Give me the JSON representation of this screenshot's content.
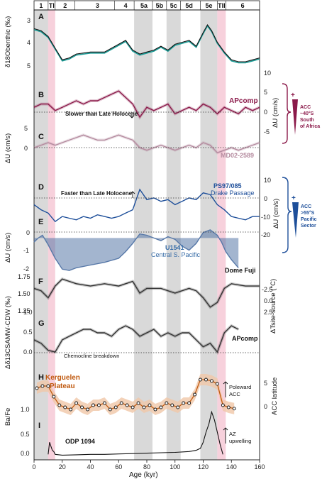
{
  "colors": {
    "teal": "#1a9c96",
    "black": "#111111",
    "maroon": "#8b1a4a",
    "maroon_light": "#c08a9f",
    "mauve": "#b48a9e",
    "blue": "#1e4f9a",
    "blue_fill": "#5778a8",
    "gray_dark": "#333333",
    "gray_fill": "#8a8a8a",
    "orange": "#c05a10",
    "orange_fill": "#f0c7a8",
    "gray_band": "#d9d9d9",
    "pink_band": "#f6c9d6"
  },
  "stages": [
    "1",
    "TI",
    "2",
    "3",
    "4",
    "5a",
    "5b",
    "5c",
    "5d",
    "5e",
    "TII",
    "6"
  ],
  "xaxis": {
    "label": "Age (kyr)",
    "ticks": [
      "0",
      "20",
      "40",
      "60",
      "80",
      "100",
      "120",
      "140",
      "160"
    ]
  },
  "panels": {
    "A": {
      "letter": "A",
      "ylabel": "δ18Obenthic (‰)",
      "ticks": [
        "3",
        "4",
        "5"
      ]
    },
    "B": {
      "letter": "B",
      "name": "APcomp",
      "ylabel": "ΔU (cm/s)",
      "ticks": [
        "10",
        "5",
        "0",
        "-5"
      ],
      "annotation": "Slower than Late Holocene"
    },
    "C": {
      "letter": "C",
      "name": "MD02-2589",
      "ylabel": "ΔU (cm/s)",
      "ticks": [
        "5",
        "0"
      ]
    },
    "D": {
      "letter": "D",
      "name": "PS97/085",
      "name2": "Drake Passage",
      "ylabel": "ΔU (cm/s)",
      "ticks": [
        "10",
        "0",
        "-10",
        "-20"
      ],
      "annotation": "Faster than Late Holocene"
    },
    "E": {
      "letter": "E",
      "name": "U1541",
      "name2": "Central S. Pacific",
      "ylabel": "ΔU (cm/s)",
      "ticks": [
        "0",
        "-1",
        "-2"
      ]
    },
    "F": {
      "letter": "F",
      "name": "Dome Fuji",
      "ylabel": "ΔTsite-source (°C)",
      "ticks": [
        "1.75",
        "1.50",
        "1.25",
        "-2.5",
        "0.0",
        "2.5"
      ]
    },
    "G": {
      "letter": "G",
      "name": "APcomp",
      "ylabel": "Δδ13CSAMW-CDW (‰)",
      "ticks": [
        "1.0",
        "0.5",
        "0.0"
      ],
      "annotation": "Chemocline breakdown"
    },
    "H": {
      "letter": "H",
      "name": "Kerguelen",
      "name2": "Plateau",
      "ylabel": "ACC latitude",
      "ticks": [
        "5",
        "0"
      ],
      "annotation": "Poleward",
      "annotation2": "ACC"
    },
    "I": {
      "letter": "I",
      "name": "ODP 1094",
      "ylabel": "Ba/Fe",
      "ticks": [
        "1.0",
        "0.5",
        "0.0"
      ],
      "annotation": "AZ",
      "annotation2": "upwelling"
    }
  },
  "brackets": {
    "upper": {
      "lines": [
        "ACC",
        "~40°S",
        "South",
        "of Africa"
      ]
    },
    "lower": {
      "lines": [
        "ACC",
        ">55°S",
        "Pacific",
        "Sector"
      ]
    }
  },
  "chart_data": [
    {
      "panel": "A",
      "type": "line",
      "ylabel": "δ18Obenthic (‰)",
      "ylim": [
        5.3,
        2.6
      ],
      "reversed": true,
      "x": [
        0,
        5,
        10,
        15,
        20,
        25,
        30,
        40,
        50,
        55,
        60,
        65,
        70,
        75,
        80,
        85,
        90,
        95,
        100,
        105,
        110,
        115,
        120,
        123,
        126,
        130,
        135,
        140,
        145,
        150,
        155,
        160
      ],
      "series": [
        {
          "values": [
            3.2,
            3.3,
            3.6,
            4.2,
            4.8,
            4.7,
            4.5,
            4.4,
            4.4,
            4.2,
            4.0,
            3.8,
            4.3,
            4.5,
            4.4,
            4.3,
            4.1,
            4.3,
            4.0,
            3.9,
            3.8,
            4.1,
            3.4,
            3.0,
            3.3,
            3.9,
            4.4,
            4.8,
            4.9,
            4.9,
            4.8,
            4.7
          ]
        }
      ]
    },
    {
      "panel": "B",
      "type": "line",
      "name": "APcomp",
      "ylabel": "ΔU (cm/s)",
      "ylim": [
        -8,
        12
      ],
      "x": [
        0,
        5,
        10,
        15,
        20,
        25,
        30,
        35,
        40,
        45,
        50,
        55,
        60,
        65,
        70,
        75,
        80,
        85,
        90,
        95,
        100,
        105,
        110,
        115,
        120,
        125,
        130,
        135,
        140,
        145,
        150,
        155,
        160
      ],
      "series": [
        {
          "values": [
            0,
            1,
            1,
            -1,
            0,
            1,
            2,
            1,
            2,
            2,
            3,
            4,
            5,
            3,
            1,
            -3,
            0,
            -1,
            0,
            1,
            -2,
            -1,
            0,
            -1,
            1,
            0,
            -2,
            0,
            -1,
            -2,
            0,
            -1,
            0
          ]
        }
      ]
    },
    {
      "panel": "C",
      "type": "line",
      "name": "MD02-2589",
      "ylabel": "ΔU (cm/s)",
      "ylim": [
        -5,
        9
      ],
      "x": [
        0,
        5,
        10,
        15,
        20,
        25,
        30,
        35,
        40,
        45,
        50,
        55,
        60,
        65,
        70,
        75,
        80,
        85,
        90,
        95,
        100,
        105,
        110,
        115,
        120,
        125,
        130,
        135,
        140,
        145,
        150,
        155,
        160
      ],
      "series": [
        {
          "values": [
            0,
            1,
            2,
            1,
            2,
            3,
            4,
            5,
            4,
            3,
            3,
            4,
            5,
            4,
            3,
            0,
            -1,
            0,
            1,
            0,
            -1,
            0,
            1,
            0,
            2,
            1,
            -2,
            -1,
            0,
            -1,
            0,
            1,
            2
          ]
        }
      ]
    },
    {
      "panel": "D",
      "type": "line",
      "name": "PS97/085",
      "ylabel": "ΔU (cm/s)",
      "ylim": [
        -25,
        12
      ],
      "x": [
        0,
        5,
        10,
        15,
        20,
        25,
        30,
        35,
        40,
        45,
        50,
        55,
        60,
        65,
        70,
        75,
        80,
        85,
        90,
        95,
        100,
        105,
        110,
        115,
        120,
        125,
        130,
        135,
        140,
        145,
        150,
        155,
        160
      ],
      "series": [
        {
          "values": [
            -5,
            -8,
            -10,
            -15,
            -12,
            -13,
            -14,
            -12,
            -13,
            -11,
            -12,
            -13,
            -12,
            -10,
            -8,
            4,
            -2,
            -1,
            -3,
            -2,
            -5,
            -3,
            -1,
            -2,
            2,
            1,
            -5,
            -8,
            -12,
            -13,
            -14,
            -12,
            -12
          ]
        }
      ]
    },
    {
      "panel": "E",
      "type": "area",
      "name": "U1541",
      "ylabel": "ΔU (cm/s)",
      "ylim": [
        -2.6,
        0.7
      ],
      "x": [
        0,
        3,
        6,
        10,
        15,
        20,
        25,
        30,
        40,
        50,
        60,
        65,
        70,
        75,
        80,
        85,
        90,
        95,
        100,
        105,
        110,
        115,
        120,
        125,
        130,
        133,
        136,
        140,
        145
      ],
      "series": [
        {
          "values": [
            -0.3,
            0.0,
            0.2,
            -0.5,
            -1.5,
            -2.3,
            -2.4,
            -2.2,
            -2.0,
            -1.8,
            -1.5,
            -1.0,
            -0.4,
            0.3,
            0.2,
            0.0,
            -0.2,
            0.1,
            -0.1,
            -0.6,
            -0.9,
            -0.4,
            0.4,
            0.6,
            0.2,
            -0.3,
            -1.0,
            -1.6,
            -2.2
          ]
        }
      ]
    },
    {
      "panel": "F",
      "type": "line",
      "name": "Dome Fuji",
      "ylabel": "ΔTsite-source (°C)",
      "ylim": [
        0.9,
        1.9
      ],
      "x": [
        0,
        5,
        10,
        15,
        20,
        25,
        30,
        40,
        50,
        60,
        70,
        75,
        80,
        90,
        100,
        105,
        110,
        115,
        120,
        125,
        130,
        135,
        140,
        150,
        160
      ],
      "series": [
        {
          "values": [
            1.5,
            1.45,
            1.3,
            1.55,
            1.7,
            1.65,
            1.6,
            1.55,
            1.6,
            1.55,
            1.65,
            1.4,
            1.5,
            1.5,
            1.4,
            1.45,
            1.5,
            1.45,
            1.3,
            1.1,
            1.2,
            1.5,
            1.6,
            1.55,
            1.55
          ]
        }
      ]
    },
    {
      "panel": "G",
      "type": "line",
      "name": "APcomp",
      "ylabel": "Δδ13CSAMW-CDW (‰)",
      "ylim": [
        -0.15,
        1.35
      ],
      "x": [
        0,
        5,
        10,
        15,
        20,
        25,
        30,
        35,
        40,
        45,
        50,
        55,
        60,
        65,
        70,
        75,
        80,
        85,
        90,
        95,
        100,
        105,
        110,
        115,
        120,
        125,
        130,
        135,
        140,
        145
      ],
      "series": [
        {
          "values": [
            0.4,
            0.3,
            0.1,
            0.05,
            0.4,
            0.5,
            0.6,
            0.7,
            0.7,
            0.6,
            0.6,
            0.5,
            0.7,
            0.8,
            0.7,
            0.5,
            0.6,
            0.7,
            0.5,
            0.6,
            0.5,
            0.6,
            0.6,
            0.4,
            0.2,
            0.3,
            0.05,
            0.6,
            0.8,
            0.7
          ]
        }
      ]
    },
    {
      "panel": "H",
      "type": "line",
      "name": "Kerguelen Plateau",
      "ylabel": "ACC latitude",
      "ylim": [
        -3,
        9
      ],
      "x": [
        2,
        6,
        10,
        14,
        18,
        22,
        26,
        30,
        34,
        38,
        42,
        46,
        50,
        54,
        58,
        62,
        66,
        70,
        74,
        78,
        82,
        86,
        90,
        94,
        98,
        102,
        106,
        110,
        114,
        118,
        122,
        126,
        130,
        134,
        138,
        142
      ],
      "series": [
        {
          "values": [
            4.5,
            5,
            5,
            2.5,
            0.5,
            0,
            -0.5,
            1,
            0,
            -0.5,
            0.5,
            0.5,
            1,
            -0.5,
            0,
            1,
            0.5,
            0,
            1,
            0,
            0.5,
            -0.5,
            0,
            1,
            0.5,
            0,
            1,
            1,
            3,
            6.5,
            6.5,
            6.2,
            5.5,
            0.5,
            0,
            -0.3
          ]
        }
      ]
    },
    {
      "panel": "I",
      "type": "line",
      "name": "ODP 1094",
      "ylabel": "Ba/Fe",
      "ylim": [
        -0.05,
        1.25
      ],
      "x": [
        10,
        11,
        12,
        13,
        14,
        15,
        20,
        30,
        40,
        50,
        60,
        70,
        80,
        90,
        100,
        110,
        115,
        118,
        120,
        122,
        124,
        126,
        128,
        130,
        132,
        134
      ],
      "series": [
        {
          "values": [
            0.05,
            0.35,
            0.25,
            0.15,
            0.12,
            0.05,
            0.03,
            0.04,
            0.05,
            0.05,
            0.06,
            0.07,
            0.08,
            0.09,
            0.1,
            0.12,
            0.15,
            0.2,
            0.35,
            0.6,
            0.8,
            1.1,
            0.9,
            0.6,
            0.3,
            0.05
          ]
        }
      ]
    }
  ]
}
